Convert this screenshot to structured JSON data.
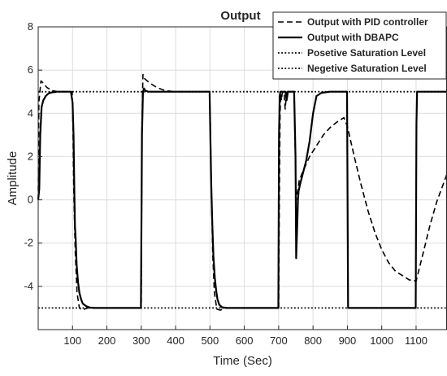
{
  "chart_data": {
    "type": "line",
    "title": "Output",
    "xlabel": "Time (Sec)",
    "ylabel": "Amplitude",
    "xlim": [
      0,
      1190
    ],
    "ylim": [
      -6,
      8
    ],
    "xticks": [
      100,
      200,
      300,
      400,
      500,
      600,
      700,
      800,
      900,
      1000,
      1100
    ],
    "yticks": [
      -4,
      -2,
      0,
      2,
      4,
      6,
      8
    ],
    "grid": true,
    "legend_position": "top-right",
    "colors": {
      "series": "#000000",
      "grid": "#dcdcdc",
      "axes": "#262626"
    },
    "series": [
      {
        "name": "Output with PID controller",
        "style": "dashed",
        "x": [
          0,
          2,
          8,
          15,
          25,
          40,
          60,
          80,
          99,
          101,
          104,
          108,
          113,
          120,
          128,
          135,
          145,
          160,
          200,
          300,
          302,
          305,
          310,
          325,
          345,
          370,
          400,
          499,
          501,
          504,
          508,
          513,
          520,
          530,
          545,
          600,
          700,
          702,
          704,
          706,
          708,
          710,
          713,
          716,
          719,
          722,
          725,
          735,
          745,
          749,
          751,
          754,
          757,
          760,
          770,
          790,
          810,
          830,
          850,
          870,
          890,
          900,
          920,
          940,
          960,
          980,
          1000,
          1020,
          1040,
          1060,
          1080,
          1100,
          1120,
          1140,
          1160,
          1190
        ],
        "y": [
          0,
          4.5,
          5.5,
          5.4,
          5.2,
          5.05,
          5.0,
          5.0,
          5.0,
          3.5,
          0,
          -2.5,
          -4.3,
          -5.0,
          -5.1,
          -5.05,
          -5.0,
          -5.0,
          -5.0,
          -5.0,
          3.5,
          5.8,
          5.6,
          5.4,
          5.2,
          5.05,
          5.0,
          5.0,
          3.5,
          0.5,
          -2.5,
          -4.3,
          -5.05,
          -5.1,
          -5.0,
          -5.0,
          -5.0,
          0,
          4.0,
          4.9,
          4.6,
          4.9,
          5.0,
          4.9,
          4.2,
          4.8,
          5.0,
          5.0,
          5.0,
          1.5,
          0,
          0.3,
          0.6,
          0.9,
          1.3,
          2.0,
          2.5,
          3.0,
          3.35,
          3.6,
          3.8,
          3.4,
          2.0,
          0.7,
          -0.5,
          -1.5,
          -2.3,
          -2.9,
          -3.3,
          -3.5,
          -3.7,
          -3.75,
          -2.5,
          -1.2,
          -0.1,
          1.2
        ]
      },
      {
        "name": "Output with DBAPC",
        "style": "solid",
        "x": [
          0,
          3,
          6,
          10,
          15,
          22,
          30,
          40,
          55,
          75,
          95,
          100,
          103,
          105,
          107,
          109,
          112,
          116,
          120,
          125,
          130,
          140,
          150,
          165,
          185,
          210,
          250,
          299,
          302,
          305,
          308,
          312,
          320,
          340,
          380,
          420,
          499,
          501,
          504,
          507,
          510,
          514,
          518,
          522,
          527,
          535,
          550,
          600,
          699,
          701,
          703,
          705,
          710,
          716,
          720,
          723,
          727,
          735,
          745,
          749,
          751,
          754,
          756,
          758,
          762,
          770,
          780,
          790,
          800,
          810,
          825,
          850,
          880,
          899,
          902,
          1099,
          1101,
          1103,
          1190
        ],
        "y": [
          0,
          0.5,
          3.0,
          4.3,
          4.6,
          4.8,
          4.92,
          4.97,
          5.0,
          5.0,
          5.0,
          4.5,
          3.0,
          0.6,
          -1.2,
          -1.8,
          -3.0,
          -3.8,
          -4.3,
          -4.6,
          -4.8,
          -4.92,
          -4.98,
          -5.0,
          -5.0,
          -5.0,
          -5.0,
          -5.0,
          3.0,
          5.0,
          5.15,
          5.05,
          5.0,
          5.0,
          5.0,
          5.0,
          5.0,
          3.0,
          0.6,
          -1.2,
          -2.6,
          -3.6,
          -4.2,
          -4.6,
          -4.85,
          -4.97,
          -5.0,
          -5.0,
          -5.0,
          3.0,
          4.8,
          5.0,
          5.0,
          5.0,
          5.0,
          4.6,
          5.0,
          5.0,
          5.0,
          2.0,
          -2.7,
          -1.2,
          0,
          0.4,
          0.7,
          1.2,
          1.8,
          2.7,
          4.0,
          4.8,
          4.95,
          5.0,
          5.0,
          5.0,
          -5.0,
          -5.0,
          3.5,
          5.0,
          5.0
        ]
      },
      {
        "name": "Posetive Saturation Level",
        "style": "dotted",
        "x": [
          0,
          1190
        ],
        "y": [
          5,
          5
        ]
      },
      {
        "name": "Negetive Saturation Level",
        "style": "dotted",
        "x": [
          0,
          1190
        ],
        "y": [
          -5,
          -5
        ]
      }
    ]
  }
}
